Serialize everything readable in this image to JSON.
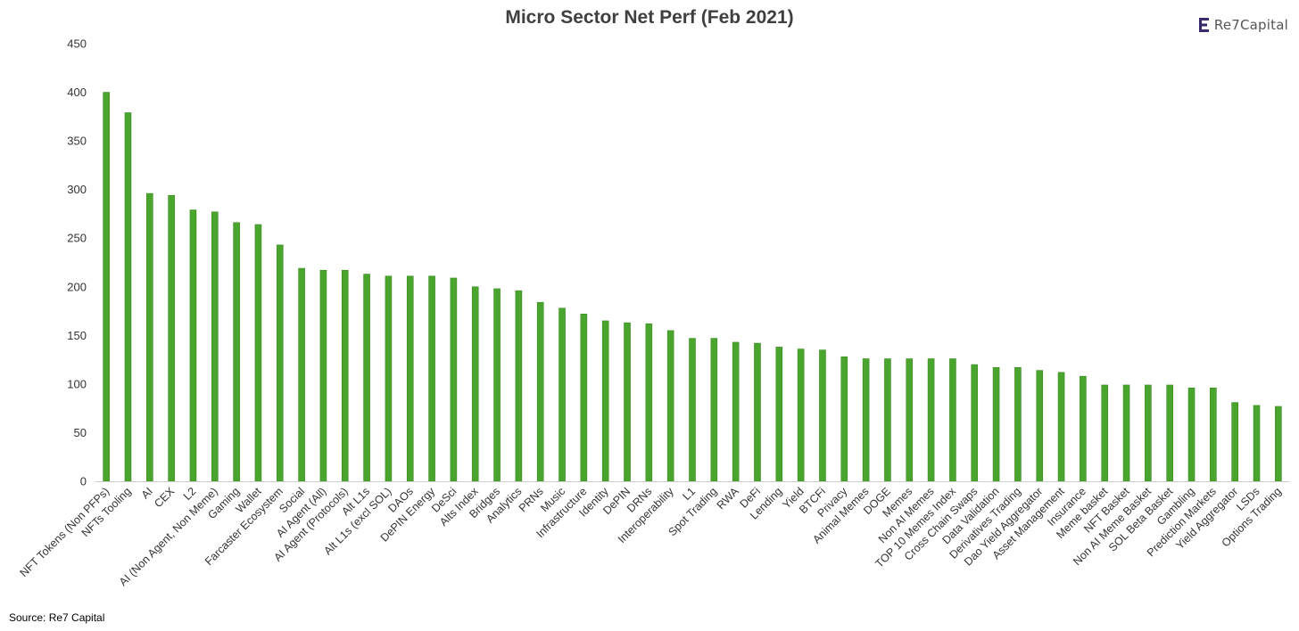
{
  "header": {
    "title": "Micro Sector Net Perf (Feb 2021)",
    "logo_text": "Re7Capital",
    "logo_icon": "re7-logo-icon"
  },
  "footer": {
    "source": "Source: Re7 Capital"
  },
  "colors": {
    "bar": "#4aa52e",
    "bar_edge": "#3a8a22",
    "axis": "#cccccc",
    "logo_mark": "#3b2a6b"
  },
  "chart_data": {
    "type": "bar",
    "title": "Micro Sector Net Perf (Feb 2021)",
    "xlabel": "",
    "ylabel": "",
    "ylim": [
      0,
      450
    ],
    "yticks": [
      0,
      50,
      100,
      150,
      200,
      250,
      300,
      350,
      400,
      450
    ],
    "grid": false,
    "legend": "none",
    "categories": [
      "NFT Tokens (Non PFPs)",
      "NFTs Tooling",
      "AI",
      "CEX",
      "L2",
      "AI (Non Agent, Non Meme)",
      "Gaming",
      "Wallet",
      "Farcaster Ecosystem",
      "Social",
      "AI Agent (All)",
      "AI Agent (Protocols)",
      "Alt L1s",
      "Alt L1s (excl SOL)",
      "DAOs",
      "DePIN Energy",
      "DeSci",
      "Alts Index",
      "Bridges",
      "Analytics",
      "PRNs",
      "Music",
      "Infrastructure",
      "Identity",
      "DePIN",
      "DRNs",
      "Interoperability",
      "L1",
      "Spot Trading",
      "RWA",
      "DeFi",
      "Lending",
      "Yield",
      "BTCFi",
      "Privacy",
      "Animal Memes",
      "DOGE",
      "Memes",
      "Non AI Memes",
      "TOP 10 Memes Index",
      "Cross Chain Swaps",
      "Data Validation",
      "Derivatives Trading",
      "Dao Yield Aggregator",
      "Asset Management",
      "Insurance",
      "Meme basket",
      "NFT Basket",
      "Non AI Meme Basket",
      "SOL Beta Basket",
      "Gambling",
      "Prediction Markets",
      "Yield Aggregator",
      "LSDs",
      "Options Trading"
    ],
    "values": [
      400,
      379,
      296,
      294,
      279,
      277,
      266,
      264,
      243,
      219,
      217,
      217,
      213,
      211,
      211,
      211,
      209,
      200,
      198,
      196,
      184,
      178,
      172,
      165,
      163,
      162,
      155,
      147,
      147,
      143,
      142,
      138,
      136,
      135,
      128,
      126,
      126,
      126,
      126,
      126,
      120,
      117,
      117,
      114,
      112,
      108,
      99,
      99,
      99,
      99,
      96,
      96,
      81,
      78,
      77
    ]
  }
}
